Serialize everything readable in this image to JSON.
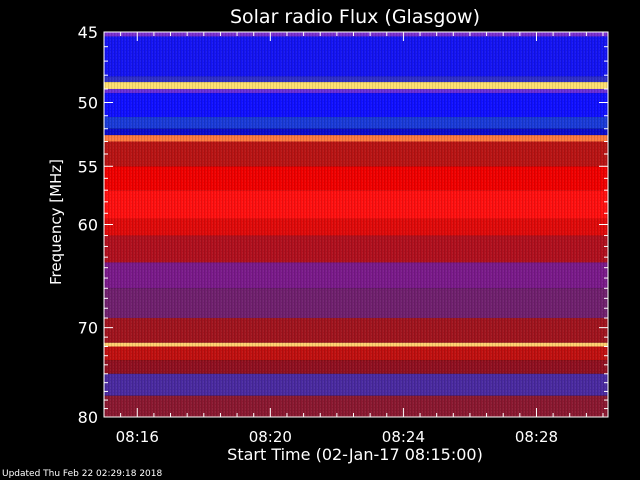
{
  "chart_data": {
    "type": "heatmap",
    "title": "Solar radio Flux (Glasgow)",
    "xlabel": "Start Time (02-Jan-17 08:15:00)",
    "ylabel": "Frequency [MHz]",
    "x_range_minutes": [
      0,
      15.15
    ],
    "ylim": [
      45,
      80
    ],
    "x_ticks": [
      {
        "minute": 1,
        "label": "08:16"
      },
      {
        "minute": 5,
        "label": "08:20"
      },
      {
        "minute": 9,
        "label": "08:24"
      },
      {
        "minute": 13,
        "label": "08:28"
      }
    ],
    "y_ticks": [
      {
        "value": 45,
        "label": "45"
      },
      {
        "value": 50,
        "label": "50"
      },
      {
        "value": 55,
        "label": "55"
      },
      {
        "value": 60,
        "label": "60"
      },
      {
        "value": 70,
        "label": "70"
      },
      {
        "value": 80,
        "label": "80"
      }
    ],
    "y_minor_ticks": [
      46,
      47,
      48,
      49,
      51,
      52,
      53,
      54,
      56,
      57,
      58,
      59,
      61,
      62,
      63,
      64,
      65,
      66,
      67,
      68,
      69,
      71,
      72,
      73,
      74,
      75,
      76,
      77,
      78,
      79
    ],
    "x_minor_step_minutes": 0.5,
    "colormap": [
      "#0000ff",
      "#6a2ed8",
      "#ff0000",
      "#ffd060",
      "#ffffff"
    ],
    "frequency_bands": [
      {
        "from": 45.0,
        "to": 45.3,
        "color": "#7a2fd0"
      },
      {
        "from": 45.3,
        "to": 48.1,
        "color": "#1414f2"
      },
      {
        "from": 48.1,
        "to": 48.5,
        "color": "#3030c8"
      },
      {
        "from": 48.5,
        "to": 49.0,
        "color": "#ffe070"
      },
      {
        "from": 49.0,
        "to": 49.3,
        "color": "#6a2ed8"
      },
      {
        "from": 49.3,
        "to": 51.1,
        "color": "#1010ff"
      },
      {
        "from": 51.1,
        "to": 52.0,
        "color": "#1a3bd8"
      },
      {
        "from": 52.0,
        "to": 52.5,
        "color": "#0a0acc"
      },
      {
        "from": 52.5,
        "to": 53.0,
        "color": "#ff7a40"
      },
      {
        "from": 53.0,
        "to": 55.0,
        "color": "#b81414"
      },
      {
        "from": 55.0,
        "to": 57.0,
        "color": "#f00000"
      },
      {
        "from": 57.0,
        "to": 59.5,
        "color": "#ff1010"
      },
      {
        "from": 59.5,
        "to": 61.0,
        "color": "#e00a0a"
      },
      {
        "from": 61.0,
        "to": 63.5,
        "color": "#b0101e"
      },
      {
        "from": 63.5,
        "to": 66.0,
        "color": "#7a1a8a"
      },
      {
        "from": 66.0,
        "to": 69.0,
        "color": "#70206e"
      },
      {
        "from": 69.0,
        "to": 71.6,
        "color": "#a0141e"
      },
      {
        "from": 71.6,
        "to": 72.0,
        "color": "#ffd070"
      },
      {
        "from": 72.0,
        "to": 73.5,
        "color": "#c01010"
      },
      {
        "from": 73.5,
        "to": 75.0,
        "color": "#901020"
      },
      {
        "from": 75.0,
        "to": 77.5,
        "color": "#4a2aa0"
      },
      {
        "from": 77.5,
        "to": 80.0,
        "color": "#8a1830"
      }
    ]
  },
  "footer": {
    "updated": "Updated Thu Feb 22 02:29:18 2018"
  }
}
